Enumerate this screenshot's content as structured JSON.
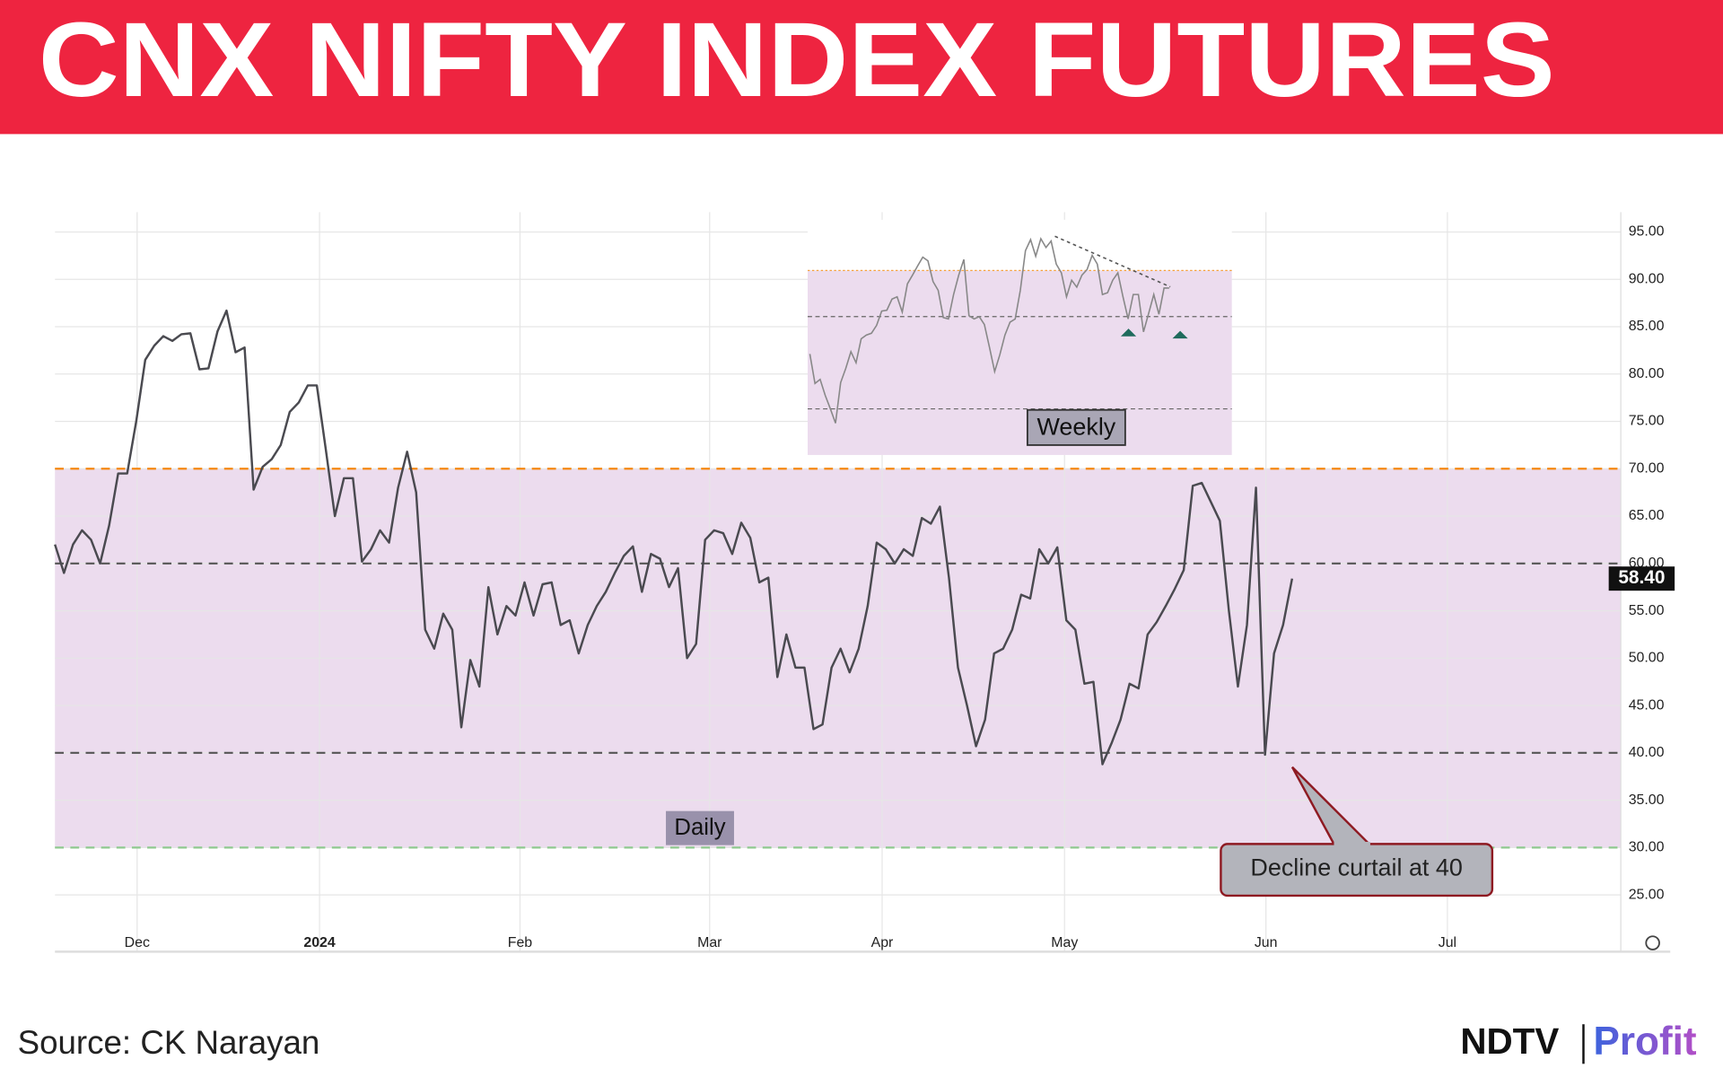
{
  "header": {
    "title": "CNX NIFTY INDEX FUTURES"
  },
  "chart_data": {
    "type": "line",
    "values": [
      62,
      59,
      62,
      63.5,
      62.5,
      60,
      64,
      69.5,
      69.5,
      75,
      81.5,
      83,
      84,
      83.5,
      84.2,
      84.3,
      80.5,
      80.6,
      84.5,
      86.7,
      82.3,
      82.8,
      67.8,
      70.2,
      71,
      72.5,
      76,
      77,
      78.8,
      78.8,
      72,
      65,
      69,
      69,
      60.2,
      61.5,
      63.5,
      62.2,
      68,
      71.8,
      67.5,
      53,
      51,
      54.7,
      53,
      42.7,
      49.8,
      47,
      57.5,
      52.5,
      55.5,
      54.5,
      58,
      54.5,
      57.8,
      58,
      53.5,
      54,
      50.5,
      53.5,
      55.5,
      57,
      59,
      60.8,
      61.8,
      57,
      61,
      60.5,
      57.5,
      59.5,
      50,
      51.5,
      62.5,
      63.5,
      63.2,
      61,
      64.3,
      62.7,
      58,
      58.5,
      48,
      52.5,
      49,
      49,
      42.5,
      43,
      49,
      51,
      48.5,
      51,
      55.5,
      62.2,
      61.5,
      60,
      61.5,
      60.8,
      64.8,
      64.2,
      66,
      58.5,
      49,
      45,
      40.7,
      43.5,
      50.5,
      51,
      53,
      56.7,
      56.3,
      61.5,
      60,
      61.7,
      54,
      53,
      47.3,
      47.5,
      38.8,
      41,
      43.5,
      47.3,
      46.8,
      52.5,
      53.8,
      55.5,
      57.3,
      59.3,
      68.2,
      68.5,
      66.5,
      64.5,
      55,
      47,
      53.5,
      68,
      39.8,
      50.5,
      53.5,
      58.4
    ],
    "color": "#4a4a50",
    "last_value_label": "58.40",
    "xlim": [
      0,
      173.4
    ],
    "xticks": [
      {
        "value": 9.1,
        "label": "Dec"
      },
      {
        "value": 29.3,
        "label": "2024"
      },
      {
        "value": 51.5,
        "label": "Feb"
      },
      {
        "value": 72.5,
        "label": "Mar"
      },
      {
        "value": 91.6,
        "label": "Apr"
      },
      {
        "value": 111.8,
        "label": "May"
      },
      {
        "value": 134.1,
        "label": "Jun"
      },
      {
        "value": 154.2,
        "label": "Jul"
      }
    ],
    "ylim": [
      19,
      97.1
    ],
    "yticks": [
      {
        "value": 95,
        "label": "95.00"
      },
      {
        "value": 90,
        "label": "90.00"
      },
      {
        "value": 85,
        "label": "85.00"
      },
      {
        "value": 80,
        "label": "80.00"
      },
      {
        "value": 75,
        "label": "75.00"
      },
      {
        "value": 70,
        "label": "70.00"
      },
      {
        "value": 65,
        "label": "65.00"
      },
      {
        "value": 60,
        "label": "60.00"
      },
      {
        "value": 55,
        "label": "55.00"
      },
      {
        "value": 50,
        "label": "50.00"
      },
      {
        "value": 45,
        "label": "45.00"
      },
      {
        "value": 40,
        "label": "40.00"
      },
      {
        "value": 35,
        "label": "35.00"
      },
      {
        "value": 30,
        "label": "30.00"
      },
      {
        "value": 25,
        "label": "25.00"
      }
    ],
    "grid": true,
    "band": {
      "range": [
        30,
        70
      ],
      "color": "#ecdcee"
    },
    "hlines": [
      {
        "value": 70,
        "color": "#f5870a"
      },
      {
        "value": 60,
        "color": "#555"
      },
      {
        "value": 40,
        "color": "#555"
      },
      {
        "value": 30,
        "color": "#8fc98f"
      }
    ],
    "panel_label": "Daily",
    "annotation": "Decline curtail at 40",
    "inset": {
      "label": "Weekly",
      "color": "#888",
      "values": [
        51.9,
        45.5,
        46.4,
        42.9,
        40,
        36.9,
        45.7,
        48.8,
        52.4,
        50,
        55.2,
        56,
        56.4,
        58.1,
        61.2,
        61.4,
        63.8,
        64.3,
        61,
        67.1,
        69,
        71,
        72.9,
        72.1,
        67.6,
        65.7,
        59.8,
        59.5,
        64.8,
        69,
        72.4,
        60.2,
        59.5,
        60,
        58.3,
        53.3,
        48.1,
        51.7,
        56,
        58.8,
        59.5,
        65.7,
        74.3,
        76.7,
        73.1,
        76.9,
        75,
        76.4,
        71.4,
        69.5,
        64.3,
        67.9,
        66.4,
        69,
        70.2,
        73.3,
        71.4,
        64.8,
        65.2,
        67.9,
        69.5,
        64.3,
        59.5,
        64.8,
        64.8,
        56.7,
        60.7,
        64.8,
        60.5,
        66.2,
        66.2
      ],
      "ylim": [
        30,
        81
      ],
      "band": [
        30,
        70
      ],
      "hlines": [
        70,
        60,
        40
      ]
    }
  },
  "footer": {
    "source": "Source: CK Narayan",
    "logo_left": "NDTV",
    "logo_right": "Profit"
  }
}
